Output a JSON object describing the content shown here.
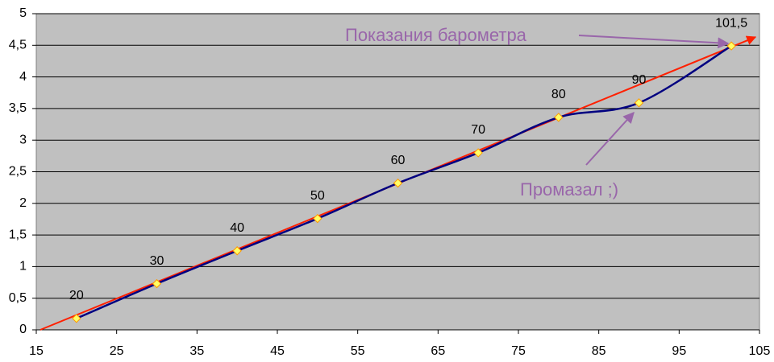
{
  "chart_data": {
    "type": "line",
    "x": [
      20,
      30,
      40,
      50,
      60,
      70,
      80,
      90,
      101.5
    ],
    "series": [
      {
        "values": [
          0.18,
          0.73,
          1.25,
          1.76,
          2.32,
          2.8,
          3.36,
          3.59,
          4.49
        ],
        "color": "#000080",
        "marker_color": "#ffff66",
        "data_labels": [
          "20",
          "30",
          "40",
          "50",
          "60",
          "70",
          "80",
          "90",
          "101,5"
        ]
      }
    ],
    "trend": {
      "x": [
        15.5,
        104.5
      ],
      "values": [
        0,
        4.63
      ],
      "color": "#ff2000"
    },
    "xlim": [
      15,
      105
    ],
    "xticks": [
      15,
      25,
      35,
      45,
      55,
      65,
      75,
      85,
      95,
      105
    ],
    "ylim": [
      0,
      5
    ],
    "yticks": [
      0,
      {
        "value": 0.5,
        "label": "0,5"
      },
      1,
      {
        "value": 1.5,
        "label": "1,5"
      },
      2,
      {
        "value": 2.5,
        "label": "2,5"
      },
      3,
      {
        "value": 3.5,
        "label": "3,5"
      },
      4,
      {
        "value": 4.5,
        "label": "4,5"
      },
      5
    ],
    "grid": true,
    "annotations": [
      "Показания барометра",
      "Промазал ;)"
    ],
    "annotation_color": "#9966aa"
  }
}
